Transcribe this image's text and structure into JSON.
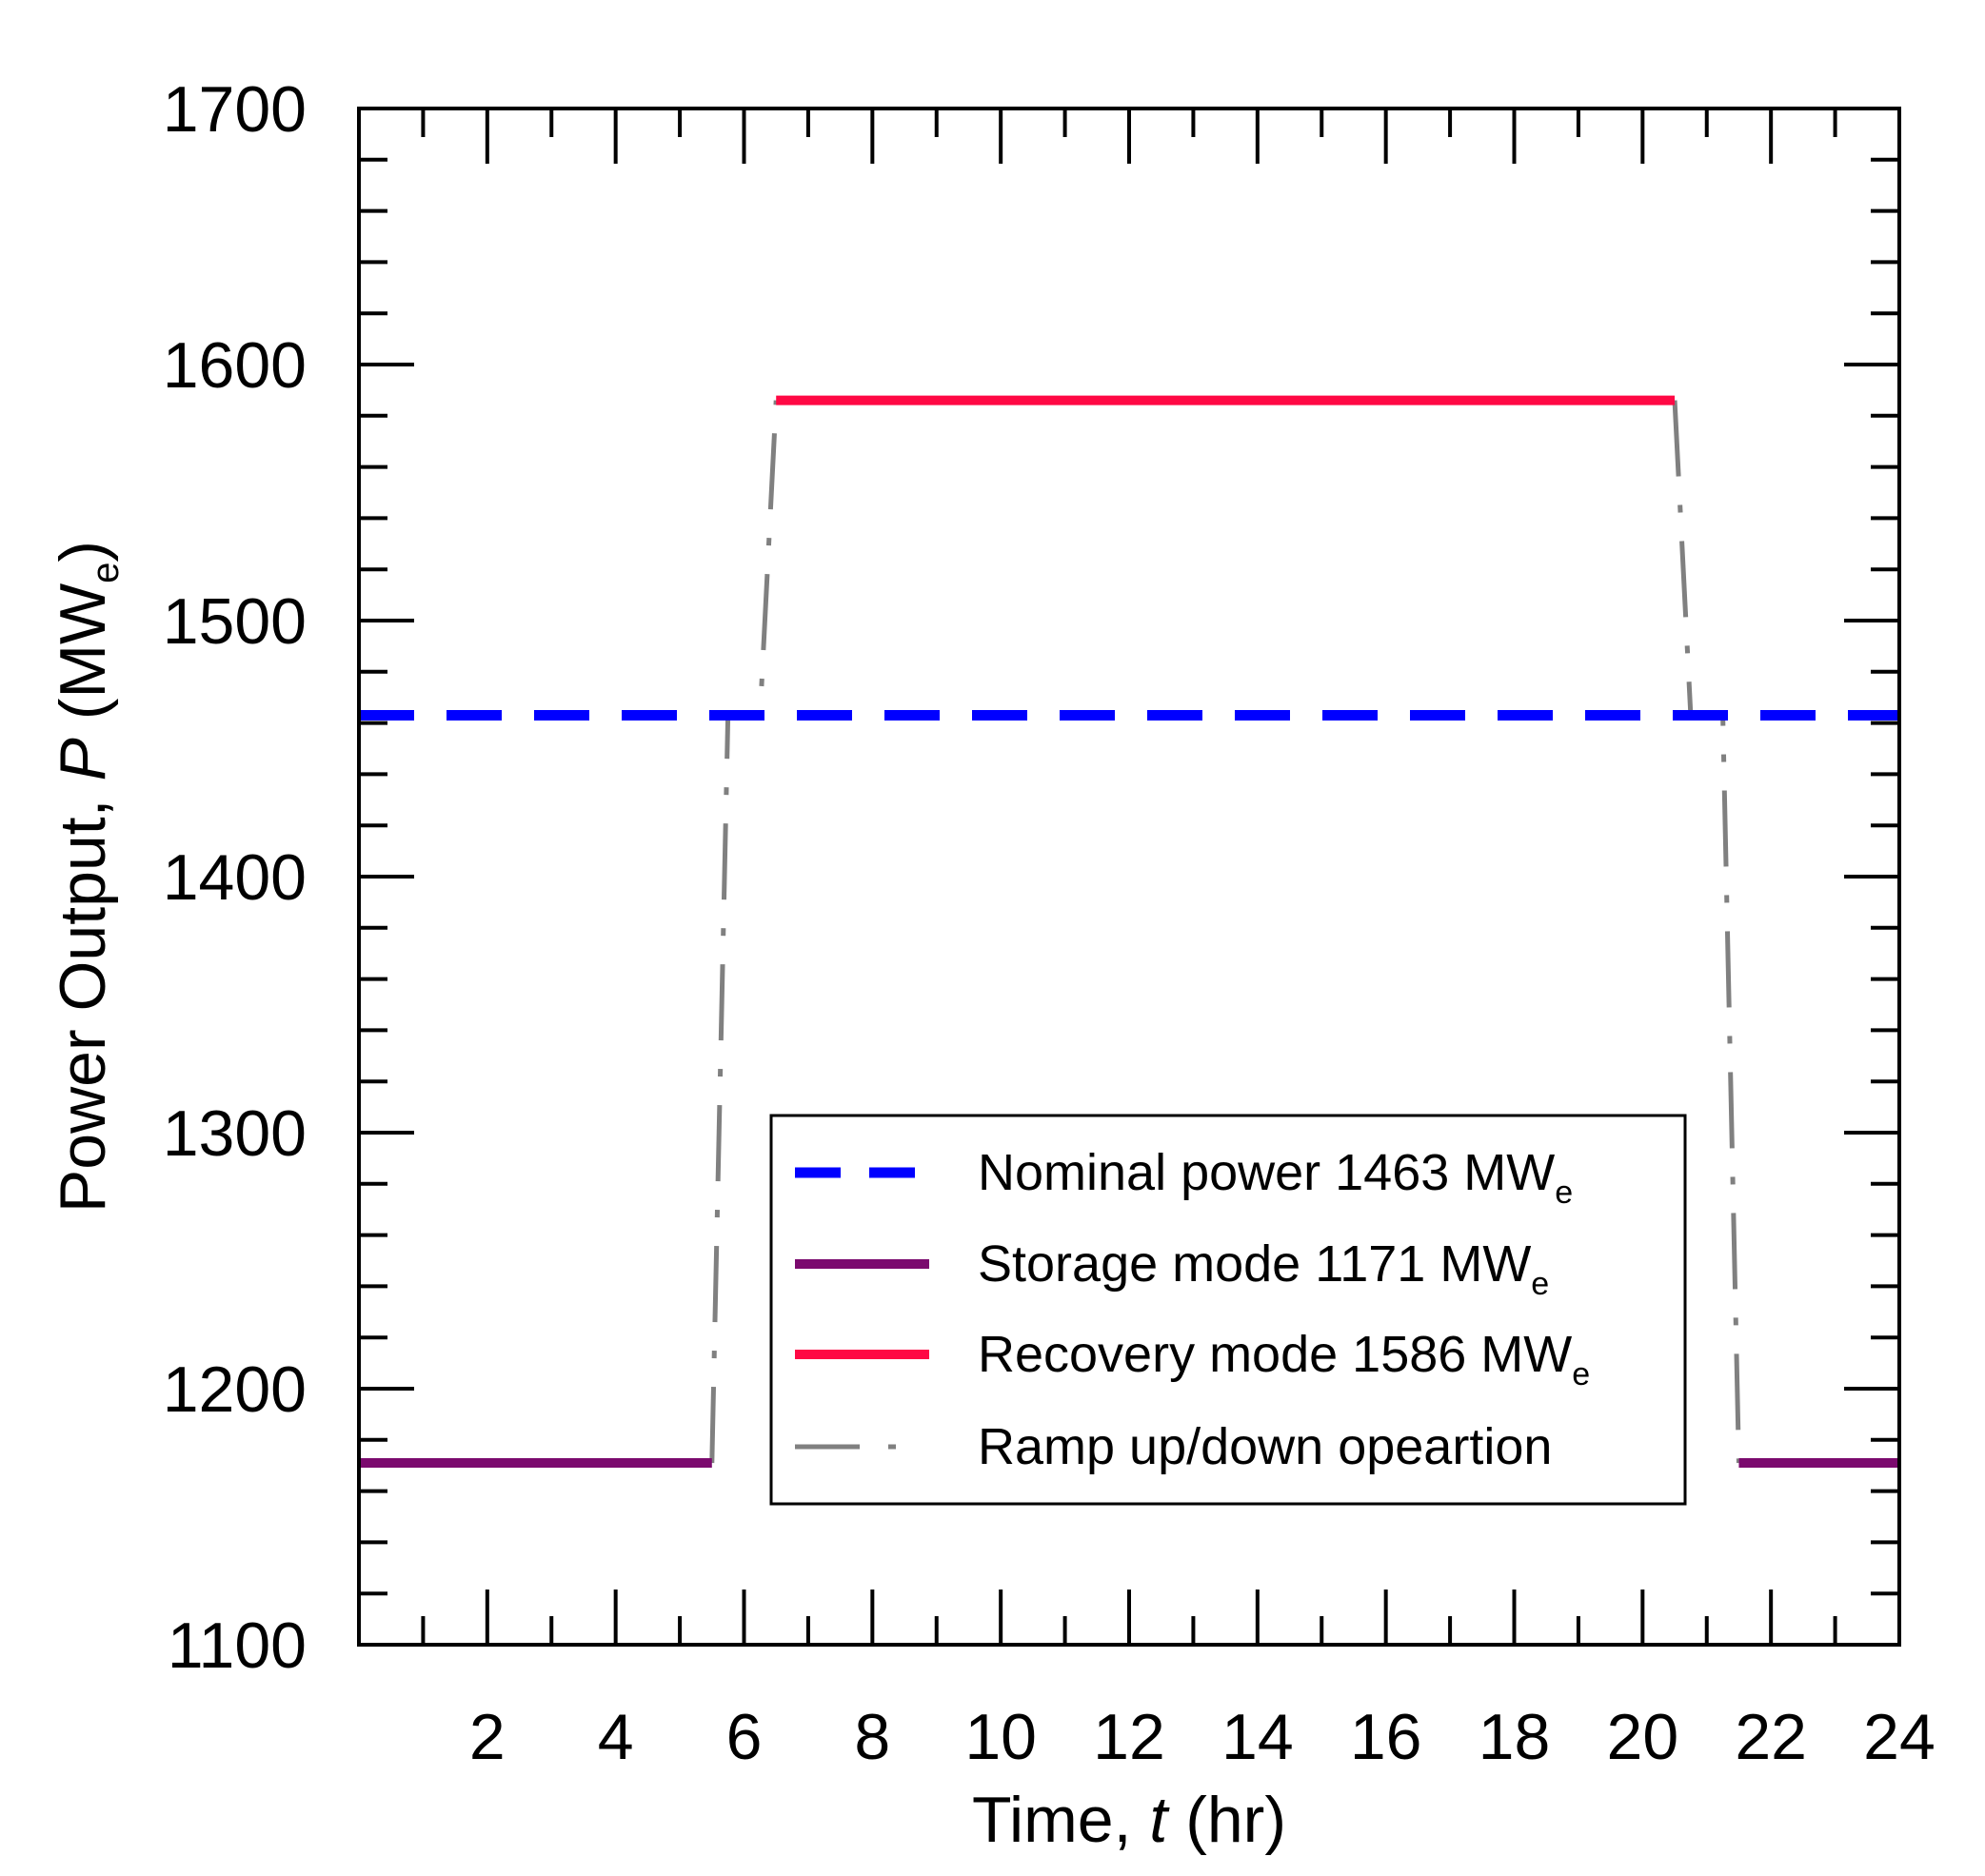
{
  "chart_data": {
    "type": "line",
    "xlabel": {
      "prefix": "Time, ",
      "var": "t",
      "suffix": " (hr)"
    },
    "ylabel": {
      "prefix": "Power Output, ",
      "var": "P",
      "suffix": " (MW",
      "sub": "e",
      "close": ")"
    },
    "xlim": [
      0,
      24
    ],
    "ylim": [
      1100,
      1700
    ],
    "x_ticks": [
      2,
      4,
      6,
      8,
      10,
      12,
      14,
      16,
      18,
      20,
      22,
      24
    ],
    "y_ticks": [
      1100,
      1200,
      1300,
      1400,
      1500,
      1600,
      1700
    ],
    "grid": false,
    "legend_position": "bottom-center",
    "series": [
      {
        "name": "Nominal power 1463 MW",
        "sub": "e",
        "color": "#0000ff",
        "style": "dashed",
        "x": [
          0,
          24
        ],
        "y": [
          1463,
          1463
        ]
      },
      {
        "name": "Storage mode 1171 MW",
        "sub": "e",
        "color": "#7b0a6e",
        "style": "solid",
        "segments": [
          {
            "x": [
              0,
              5.5
            ],
            "y": [
              1171,
              1171
            ]
          },
          {
            "x": [
              21.5,
              24
            ],
            "y": [
              1171,
              1171
            ]
          }
        ]
      },
      {
        "name": "Recovery mode 1586 MW",
        "sub": "e",
        "color": "#ff0844",
        "style": "solid",
        "x": [
          6.5,
          20.5
        ],
        "y": [
          1586,
          1586
        ]
      },
      {
        "name": "Ramp up/down opeartion",
        "sub": "",
        "color": "#808080",
        "style": "dashdot",
        "segments": [
          {
            "x": [
              5.5,
              5.75,
              6.25,
              6.5
            ],
            "y": [
              1171,
              1463,
              1463,
              1586
            ]
          },
          {
            "x": [
              20.5,
              20.75,
              21.25,
              21.5
            ],
            "y": [
              1586,
              1463,
              1463,
              1171
            ]
          }
        ]
      }
    ]
  }
}
